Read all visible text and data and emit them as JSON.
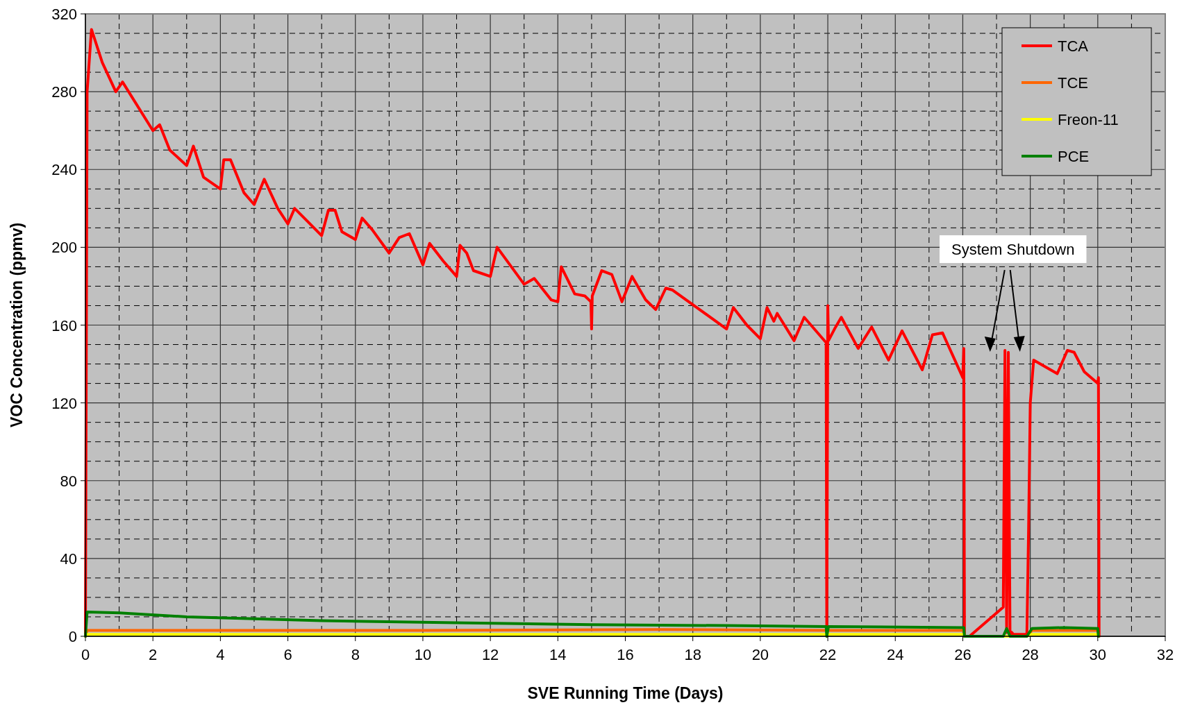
{
  "chart_data": {
    "type": "line",
    "xlabel": "SVE Running Time (Days)",
    "ylabel": "VOC Concentration (ppmv)",
    "xlim": [
      0,
      32
    ],
    "xticks": [
      0,
      2,
      4,
      6,
      8,
      10,
      12,
      14,
      16,
      18,
      20,
      22,
      24,
      26,
      28,
      30,
      32
    ],
    "ylim": [
      0,
      320
    ],
    "yticks": [
      0,
      40,
      80,
      120,
      160,
      200,
      240,
      280,
      320
    ],
    "grid": true,
    "legend": "top right",
    "line_style": "solid",
    "annotations": [
      "System Shutdown"
    ],
    "series": [
      {
        "name": "TCA",
        "color": "#ff0000",
        "x": [
          0,
          0.05,
          0.18,
          0.5,
          0.9,
          1.1,
          2.0,
          2.2,
          2.5,
          3.0,
          3.2,
          3.5,
          4.0,
          4.1,
          4.3,
          4.7,
          5.0,
          5.3,
          5.7,
          6.0,
          6.2,
          6.6,
          7.0,
          7.2,
          7.4,
          7.6,
          8.0,
          8.2,
          8.5,
          9.0,
          9.3,
          9.6,
          10.0,
          10.2,
          10.6,
          11.0,
          11.1,
          11.3,
          11.5,
          12.0,
          12.2,
          13.0,
          13.3,
          13.8,
          14.0,
          14.1,
          14.5,
          14.8,
          14.98,
          15.0,
          15.02,
          15.3,
          15.6,
          15.9,
          16.2,
          16.6,
          16.9,
          17.2,
          17.4,
          19.0,
          19.2,
          19.6,
          20.0,
          20.2,
          20.4,
          20.5,
          21.0,
          21.3,
          21.95,
          21.97,
          22.0,
          22.02,
          22.2,
          22.4,
          22.9,
          23.3,
          23.8,
          24.2,
          24.8,
          25.1,
          25.4,
          26.0,
          26.03,
          26.05,
          26.2,
          27.2,
          27.25,
          27.3,
          27.35,
          27.4,
          27.45,
          27.5,
          27.9,
          27.95,
          28.0,
          28.1,
          28.8,
          29.1,
          29.3,
          29.6,
          30.0,
          30.02,
          30.04
        ],
        "values": [
          0,
          280,
          312,
          295,
          280,
          285,
          260,
          263,
          250,
          242,
          252,
          236,
          230,
          245,
          245,
          228,
          222,
          235,
          220,
          212,
          220,
          213,
          206,
          219,
          219,
          208,
          204,
          215,
          209,
          197,
          205,
          207,
          191,
          202,
          193,
          185,
          201,
          197,
          188,
          185,
          200,
          181,
          184,
          173,
          172,
          190,
          176,
          175,
          172,
          158,
          175,
          188,
          186,
          172,
          185,
          173,
          168,
          179,
          178,
          158,
          169,
          160,
          153,
          169,
          162,
          166,
          152,
          164,
          151,
          0,
          170,
          152,
          158,
          164,
          148,
          159,
          142,
          157,
          137,
          155,
          156,
          133,
          148,
          0,
          0,
          15,
          147,
          2,
          146,
          0,
          2,
          1,
          1,
          55,
          120,
          142,
          135,
          147,
          146,
          136,
          130,
          133,
          0
        ]
      },
      {
        "name": "TCE",
        "color": "#ff6600",
        "x": [
          0,
          0.05,
          5,
          10,
          17,
          22,
          26,
          26.03,
          26.05,
          27.9,
          28.05,
          30,
          30.02
        ],
        "values": [
          0,
          3,
          3,
          3,
          3.5,
          3,
          3,
          3,
          0,
          0,
          3,
          3,
          0
        ]
      },
      {
        "name": "Freon-11",
        "color": "#ffff00",
        "x": [
          0,
          0.05,
          10,
          20,
          26,
          26.03,
          26.05,
          27.9,
          28.05,
          30,
          30.02
        ],
        "values": [
          0,
          1,
          1,
          1,
          1,
          1,
          0,
          0,
          1,
          1,
          0
        ]
      },
      {
        "name": "PCE",
        "color": "#008000",
        "x": [
          0,
          0.05,
          1,
          3,
          7,
          11,
          15,
          19,
          21.95,
          21.97,
          22.02,
          26,
          26.03,
          26.05,
          27.2,
          27.3,
          27.4,
          27.9,
          28.05,
          29,
          30,
          30.02
        ],
        "values": [
          0,
          12.5,
          12,
          10,
          8,
          7,
          6,
          5.5,
          5,
          0,
          5,
          4.5,
          4.5,
          0,
          0,
          4,
          0,
          0,
          4,
          4.5,
          4,
          0
        ]
      }
    ]
  }
}
